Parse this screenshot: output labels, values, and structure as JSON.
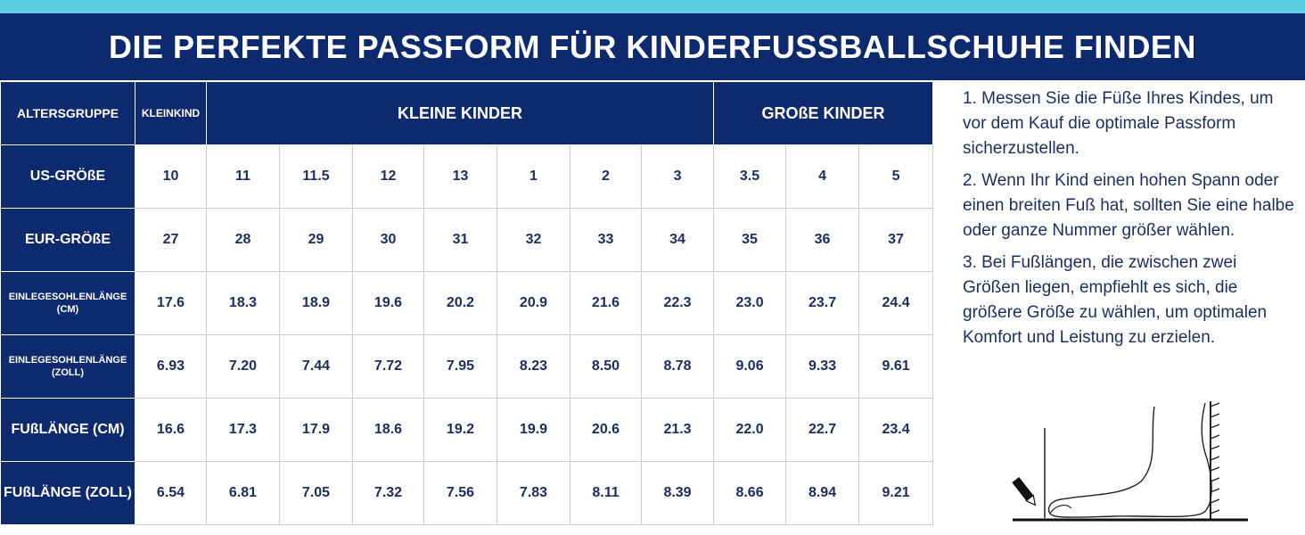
{
  "title": "DIE PERFEKTE PASSFORM FÜR KINDERFUSSBALLSCHUHE FINDEN",
  "table": {
    "header": {
      "label": "ALTERSGRUPPE",
      "groups": [
        {
          "label": "KLEINKIND",
          "span": 1
        },
        {
          "label": "KLEINE KINDER",
          "span": 7
        },
        {
          "label": "GROßE KINDER",
          "span": 3
        }
      ]
    },
    "rows": [
      {
        "label": "US-GRÖßE",
        "small": false,
        "values": [
          "10",
          "11",
          "11.5",
          "12",
          "13",
          "1",
          "2",
          "3",
          "3.5",
          "4",
          "5"
        ]
      },
      {
        "label": "EUR-GRÖßE",
        "small": false,
        "values": [
          "27",
          "28",
          "29",
          "30",
          "31",
          "32",
          "33",
          "34",
          "35",
          "36",
          "37"
        ]
      },
      {
        "label": "EINLEGESOHLENLÄNGE (CM)",
        "small": true,
        "values": [
          "17.6",
          "18.3",
          "18.9",
          "19.6",
          "20.2",
          "20.9",
          "21.6",
          "22.3",
          "23.0",
          "23.7",
          "24.4"
        ]
      },
      {
        "label": "EINLEGESOHLENLÄNGE (ZOLL)",
        "small": true,
        "values": [
          "6.93",
          "7.20",
          "7.44",
          "7.72",
          "7.95",
          "8.23",
          "8.50",
          "8.78",
          "9.06",
          "9.33",
          "9.61"
        ]
      },
      {
        "label": "FUßLÄNGE (CM)",
        "small": false,
        "values": [
          "16.6",
          "17.3",
          "17.9",
          "18.6",
          "19.2",
          "19.9",
          "20.6",
          "21.3",
          "22.0",
          "22.7",
          "23.4"
        ]
      },
      {
        "label": "FUßLÄNGE (ZOLL)",
        "small": false,
        "values": [
          "6.54",
          "6.81",
          "7.05",
          "7.32",
          "7.56",
          "7.83",
          "8.11",
          "8.39",
          "8.66",
          "8.94",
          "9.21"
        ]
      }
    ]
  },
  "instructions": [
    "1. Messen Sie die Füße Ihres Kindes, um vor dem Kauf die optimale Passform sicherzustellen.",
    "2. Wenn Ihr Kind einen hohen Spann oder einen breiten Fuß hat, sollten Sie eine halbe oder ganze Nummer größer wählen.",
    "3. Bei Fußlängen, die zwischen zwei Größen liegen, empfiehlt es sich, die größere Größe zu wählen, um optimalen Komfort und Leistung zu erzielen."
  ],
  "colors": {
    "navy": "#0e2a6e",
    "accent": "#5ccde0",
    "text": "#1d2d5c"
  },
  "illustration_icon": "foot-measuring-icon"
}
